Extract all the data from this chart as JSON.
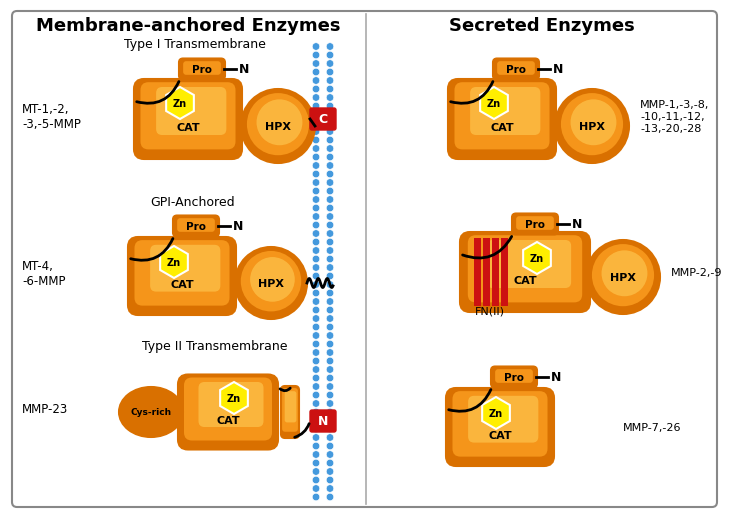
{
  "title_left": "Membrane-anchored Enzymes",
  "title_right": "Secreted Enzymes",
  "orange_dark": "#d97000",
  "orange_mid": "#f5951a",
  "orange_light": "#ffcc55",
  "yellow_hex": "#ffee00",
  "red_domain": "#cc1111",
  "blue_mem": "#4499dd",
  "label_type1": "Type I Transmembrane",
  "label_gpi": "GPI-Anchored",
  "label_type2": "Type II Transmembrane",
  "label_mt1": "MT-1,-2,\n-3,-5-MMP",
  "label_mt4": "MT-4,\n-6-MMP",
  "label_mmp23": "MMP-23",
  "label_mmp1": "MMP-1,-3,-8,\n-10,-11,-12,\n-13,-20,-28",
  "label_mmp2": "MMP-2,-9",
  "label_mmp7": "MMP-7,-26",
  "label_fn": "FN(II)"
}
